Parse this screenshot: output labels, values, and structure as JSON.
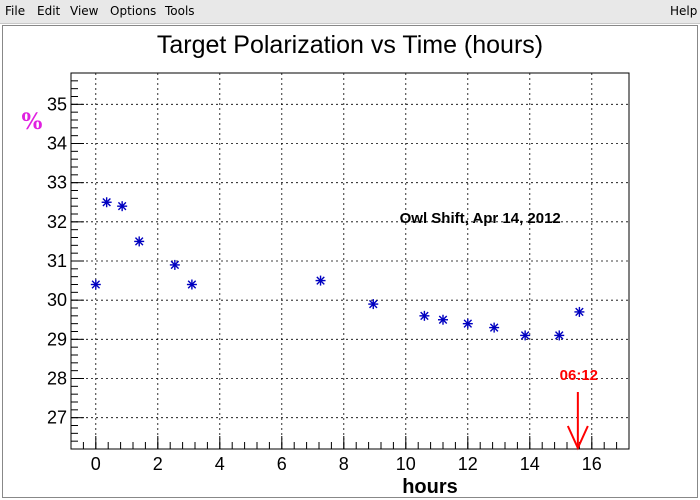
{
  "menu": {
    "file": "File",
    "edit": "Edit",
    "view": "View",
    "options": "Options",
    "tools": "Tools",
    "help": "Help"
  },
  "chart_data": {
    "type": "scatter",
    "title": "Target Polarization vs Time (hours)",
    "xlabel": "hours",
    "ylabel": "%",
    "xlim": [
      -0.8,
      17.2
    ],
    "ylim": [
      26.2,
      35.8
    ],
    "xticks": [
      0,
      2,
      4,
      6,
      8,
      10,
      12,
      14,
      16
    ],
    "yticks": [
      27,
      28,
      29,
      30,
      31,
      32,
      33,
      34,
      35
    ],
    "grid": true,
    "marker": "star",
    "colors": {
      "points": "#0000c0",
      "ylabel": "#e020e0",
      "arrow": "#ff0000"
    },
    "series": [
      {
        "x": [
          0.0,
          0.35,
          0.85,
          1.4,
          2.55,
          3.1,
          7.25,
          8.95,
          10.6,
          11.2,
          12.0,
          12.85,
          13.85,
          14.95,
          15.6
        ],
        "y": [
          30.4,
          32.5,
          32.4,
          31.5,
          30.9,
          30.4,
          30.5,
          29.9,
          29.6,
          29.5,
          29.4,
          29.3,
          29.1,
          29.1,
          29.7
        ]
      }
    ],
    "annotations": [
      {
        "text": "Owl Shift, Apr 14, 2012",
        "x": 12.4,
        "y": 32.1
      },
      {
        "text": "06:12",
        "x": 15.55,
        "y": 26.2,
        "type": "arrow"
      }
    ]
  }
}
